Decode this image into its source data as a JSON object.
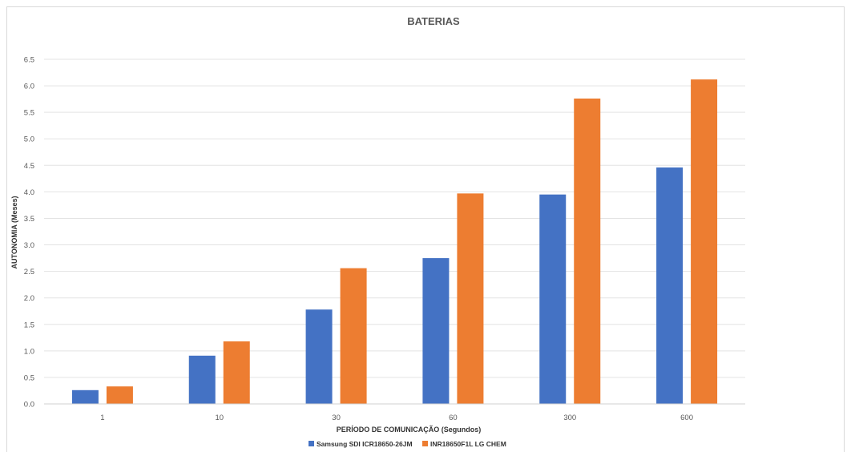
{
  "chart_data": {
    "type": "bar",
    "title": "BATERIAS",
    "xlabel": "PERÍODO DE COMUNICAÇÃO (Segundos)",
    "ylabel": "AUTONOMIA (Meses)",
    "categories": [
      "1",
      "10",
      "30",
      "60",
      "300",
      "600"
    ],
    "ylim": [
      0,
      6.5
    ],
    "yticks": [
      "0.0",
      "0.5",
      "1.0",
      "1.5",
      "2.0",
      "2.5",
      "3.0",
      "3.5",
      "4.0",
      "4.5",
      "5.0",
      "5.5",
      "6.0",
      "6.5"
    ],
    "grid": true,
    "legend_position": "bottom",
    "series": [
      {
        "name": "Samsung SDI ICR18650-26JM",
        "color": "#4472C4",
        "values": [
          0.26,
          0.91,
          1.78,
          2.75,
          3.95,
          4.46
        ]
      },
      {
        "name": "INR18650F1L LG CHEM",
        "color": "#ED7D31",
        "values": [
          0.33,
          1.18,
          2.56,
          3.97,
          5.76,
          6.12
        ]
      }
    ]
  }
}
